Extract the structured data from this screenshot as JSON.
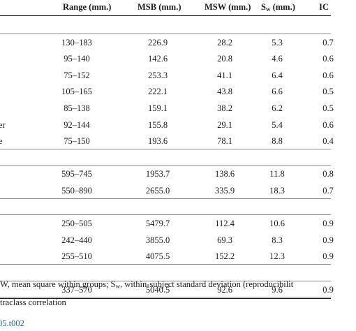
{
  "table": {
    "headers": {
      "range": "Range (mm.)",
      "msb": "MSB (mm.)",
      "msw": "MSW (mm.)",
      "sw_main": "S",
      "sw_sub": "w",
      "sw_tail": " (mm.)",
      "icc": "IC"
    },
    "rows": [
      {
        "type": "group"
      },
      {
        "type": "data",
        "label": "",
        "range": "130–183",
        "msb": "226.9",
        "msw": "28.2",
        "sw": "5.3",
        "icc": "0.7"
      },
      {
        "type": "data",
        "label": "",
        "range": "95–140",
        "msb": "142.6",
        "msw": "20.8",
        "sw": "4.6",
        "icc": "0.6"
      },
      {
        "type": "data",
        "label": "",
        "range": "75–152",
        "msb": "253.3",
        "msw": "41.1",
        "sw": "6.4",
        "icc": "0.6"
      },
      {
        "type": "data",
        "label": "",
        "range": "105–165",
        "msb": "222.1",
        "msw": "43.8",
        "sw": "6.6",
        "icc": "0.5"
      },
      {
        "type": "data",
        "label": "",
        "range": "85–138",
        "msb": "159.1",
        "msw": "38.2",
        "sw": "6.2",
        "icc": "0.5"
      },
      {
        "type": "data",
        "label": "er",
        "range": "92–144",
        "msb": "155.8",
        "msw": "29.1",
        "sw": "5.4",
        "icc": "0.6"
      },
      {
        "type": "data",
        "label": "e",
        "range": "75–150",
        "msb": "193.6",
        "msw": "78.1",
        "sw": "8.8",
        "icc": "0.4"
      },
      {
        "type": "group"
      },
      {
        "type": "data",
        "label": "",
        "range": "595–745",
        "msb": "1953.7",
        "msw": "138.6",
        "sw": "11.8",
        "icc": "0.8"
      },
      {
        "type": "data",
        "label": "",
        "range": "550–890",
        "msb": "2655.0",
        "msw": "335.9",
        "sw": "18.3",
        "icc": "0.7"
      },
      {
        "type": "group"
      },
      {
        "type": "data",
        "label": "",
        "range": "250–505",
        "msb": "5479.7",
        "msw": "112.4",
        "sw": "10.6",
        "icc": "0.9"
      },
      {
        "type": "data",
        "label": "",
        "range": "242–440",
        "msb": "3855.0",
        "msw": "69.3",
        "sw": "8.3",
        "icc": "0.9"
      },
      {
        "type": "data",
        "label": "",
        "range": "255–510",
        "msb": "4075.5",
        "msw": "152.2",
        "sw": "12.3",
        "icc": "0.9"
      },
      {
        "type": "group"
      },
      {
        "type": "data",
        "label": "",
        "range": "337–570",
        "msb": "5040.5",
        "msw": "92.6",
        "sw": "9.6",
        "icc": "0.9"
      }
    ]
  },
  "footnote": {
    "line1_a": "W, mean square within groups; S",
    "line1_sub": "w",
    "line1_b": ", within-subject standard deviation (reproducibilit",
    "line2": "traclass correlation"
  },
  "doi_fragment": "05.t002",
  "colors": {
    "link": "#1a5fb4",
    "rule": "#1a1a1a",
    "thin_rule": "#8a8a8a"
  }
}
